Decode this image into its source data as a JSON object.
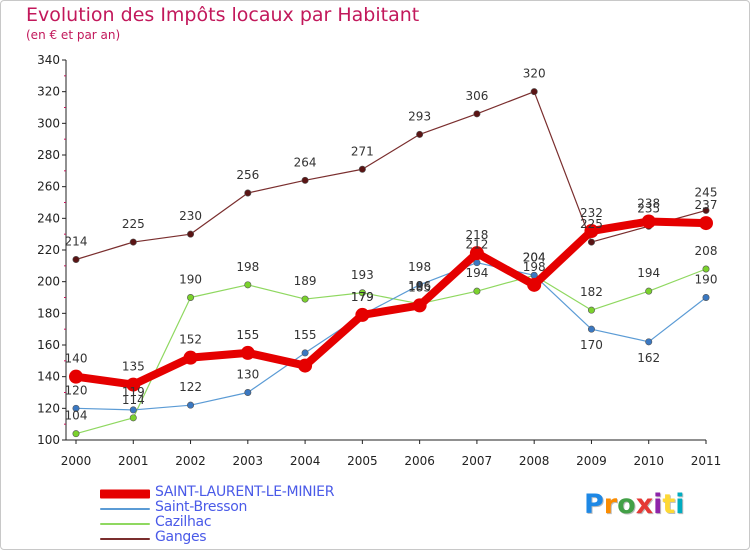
{
  "header": {
    "title": "Evolution des Impôts locaux par Habitant",
    "subtitle": "(en € et par an)"
  },
  "logo": {
    "text": "Proxiti",
    "colors": [
      "#1e88e5",
      "#fb8c00",
      "#43a047",
      "#e53935",
      "#8e24aa",
      "#fdd835",
      "#00acc1"
    ]
  },
  "chart_data": {
    "type": "line",
    "title": "Evolution des Impôts locaux par Habitant",
    "subtitle": "(en € et par an)",
    "xlabel": "",
    "ylabel": "",
    "x": [
      2000,
      2001,
      2002,
      2003,
      2004,
      2005,
      2006,
      2007,
      2008,
      2009,
      2010,
      2011
    ],
    "ylim": [
      100,
      340
    ],
    "yticks": [
      100,
      120,
      140,
      160,
      180,
      200,
      220,
      240,
      260,
      280,
      300,
      320,
      340
    ],
    "grid": false,
    "legend_position": "bottom-left",
    "series": [
      {
        "name": "SAINT-LAURENT-LE-MINIER",
        "color": "#e50000",
        "values": [
          140,
          135,
          152,
          155,
          147,
          179,
          185,
          218,
          198,
          232,
          238,
          237
        ]
      },
      {
        "name": "Saint-Bresson",
        "color": "#5b9bd5",
        "values": [
          120,
          119,
          122,
          130,
          155,
          179,
          198,
          212,
          204,
          170,
          162,
          190
        ]
      },
      {
        "name": "Cazilhac",
        "color": "#8fd860",
        "values": [
          104,
          114,
          190,
          198,
          189,
          193,
          186,
          194,
          204,
          182,
          194,
          208
        ]
      },
      {
        "name": "Ganges",
        "color": "#7a2e2e",
        "values": [
          214,
          225,
          230,
          256,
          264,
          271,
          293,
          306,
          320,
          225,
          235,
          245
        ]
      }
    ],
    "data_labels": [
      {
        "series": 0,
        "show": [
          140,
          135,
          152,
          155,
          null,
          179,
          185,
          218,
          198,
          232,
          238,
          237
        ]
      },
      {
        "series": 1,
        "show": [
          120,
          119,
          122,
          130,
          155,
          179,
          198,
          212,
          204,
          170,
          162,
          190
        ]
      },
      {
        "series": 2,
        "show": [
          104,
          114,
          190,
          198,
          189,
          193,
          186,
          194,
          204,
          182,
          194,
          208
        ]
      },
      {
        "series": 3,
        "show": [
          214,
          225,
          230,
          256,
          264,
          271,
          293,
          306,
          320,
          225,
          235,
          245
        ]
      }
    ]
  }
}
